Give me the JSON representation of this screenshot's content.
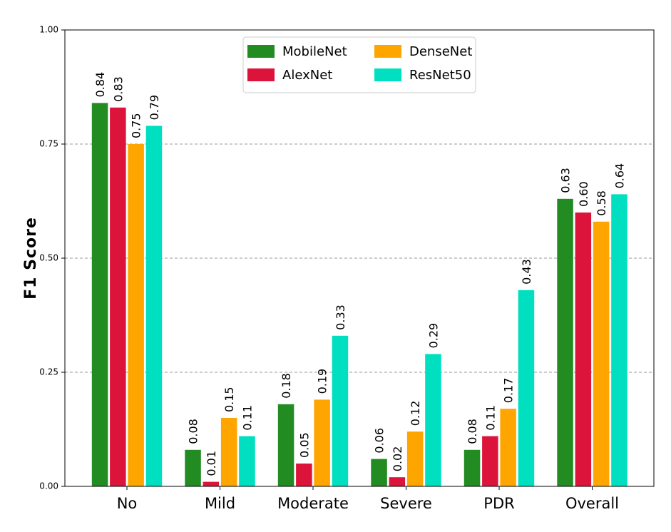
{
  "chart_data": {
    "type": "bar",
    "title": "",
    "xlabel": "",
    "ylabel": "F1 Score",
    "ylim": [
      0,
      1
    ],
    "yticks": [
      "0.00",
      "0.25",
      "0.50",
      "0.75",
      "1.00"
    ],
    "grid": "horizontal dashed",
    "legend_position": "top-center",
    "categories": [
      "No",
      "Mild",
      "Moderate",
      "Severe",
      "PDR",
      "Overall"
    ],
    "series": [
      {
        "name": "MobileNet",
        "color": "#228b22",
        "values": [
          0.84,
          0.08,
          0.18,
          0.06,
          0.08,
          0.63
        ],
        "labels": [
          "0.84",
          "0.08",
          "0.18",
          "0.06",
          "0.08",
          "0.63"
        ]
      },
      {
        "name": "AlexNet",
        "color": "#dc143c",
        "values": [
          0.83,
          0.01,
          0.05,
          0.02,
          0.11,
          0.6
        ],
        "labels": [
          "0.83",
          "0.01",
          "0.05",
          "0.02",
          "0.11",
          "0.60"
        ]
      },
      {
        "name": "DenseNet",
        "color": "#ffa500",
        "values": [
          0.75,
          0.15,
          0.19,
          0.12,
          0.17,
          0.58
        ],
        "labels": [
          "0.75",
          "0.15",
          "0.19",
          "0.12",
          "0.17",
          "0.58"
        ]
      },
      {
        "name": "ResNet50",
        "color": "#00e0c0",
        "values": [
          0.79,
          0.11,
          0.33,
          0.29,
          0.43,
          0.64
        ],
        "labels": [
          "0.79",
          "0.11",
          "0.33",
          "0.29",
          "0.43",
          "0.64"
        ]
      }
    ]
  }
}
